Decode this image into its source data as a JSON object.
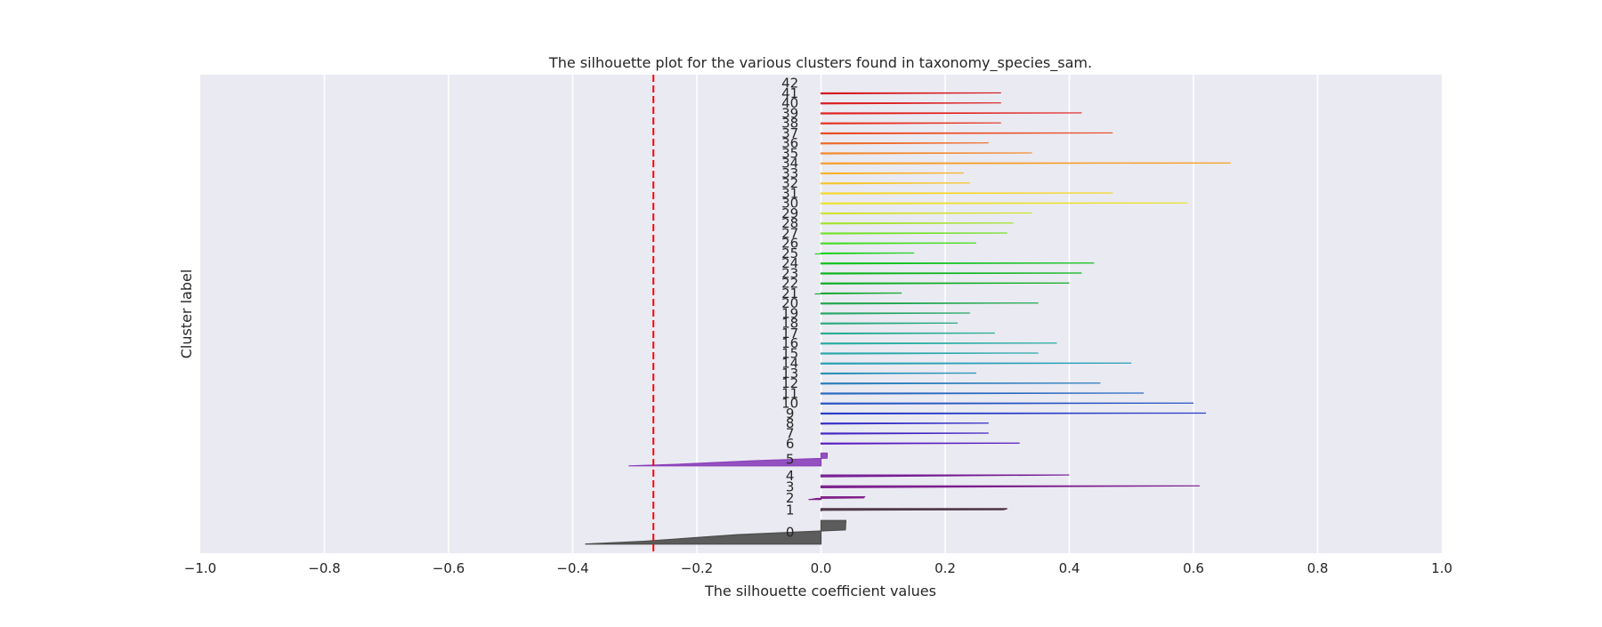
{
  "chart_data": {
    "type": "silhouette",
    "title": "The silhouette plot for the various clusters found in taxonomy_species_sam.",
    "xlabel": "The silhouette coefficient values",
    "ylabel": "Cluster label",
    "xlim": [
      -1.0,
      1.0
    ],
    "x_ticks": [
      -1.0,
      -0.8,
      -0.6,
      -0.4,
      -0.2,
      0.0,
      0.2,
      0.4,
      0.6,
      0.8,
      1.0
    ],
    "x_tick_labels": [
      "−1.0",
      "−0.8",
      "−0.6",
      "−0.4",
      "−0.2",
      "0.0",
      "0.2",
      "0.4",
      "0.6",
      "0.8",
      "1.0"
    ],
    "average_silhouette_score": -0.27,
    "average_line_color": "#ff0000",
    "background_color": "#eaeaf2",
    "grid": "vertical",
    "y_ticks_shown": false,
    "clusters": [
      {
        "label": "0",
        "color": "#4d4d4d",
        "max": 0.04,
        "min": -0.38,
        "size": 26
      },
      {
        "label": "1",
        "color": "#4d3545",
        "max": 0.3,
        "min": 0.0,
        "size": 3
      },
      {
        "label": "2",
        "color": "#7f1e86",
        "max": 0.07,
        "min": -0.02,
        "size": 3
      },
      {
        "label": "3",
        "color": "#7a1d8c",
        "max": 0.61,
        "min": 0.0,
        "size": 2
      },
      {
        "label": "4",
        "color": "#751b93",
        "max": 0.4,
        "min": 0.0,
        "size": 2
      },
      {
        "label": "5",
        "color": "#8a3fba",
        "max": 0.01,
        "min": -0.31,
        "size": 14
      },
      {
        "label": "6",
        "color": "#5a1fc0",
        "max": 0.32,
        "min": 0.0,
        "size": 1
      },
      {
        "label": "7",
        "color": "#4526c4",
        "max": 0.27,
        "min": 0.0,
        "size": 1
      },
      {
        "label": "8",
        "color": "#3630c7",
        "max": 0.27,
        "min": 0.0,
        "size": 1
      },
      {
        "label": "9",
        "color": "#2a3ec8",
        "max": 0.62,
        "min": 0.0,
        "size": 1
      },
      {
        "label": "10",
        "color": "#2a55c4",
        "max": 0.6,
        "min": 0.0,
        "size": 1
      },
      {
        "label": "11",
        "color": "#2a6ac0",
        "max": 0.52,
        "min": 0.0,
        "size": 1
      },
      {
        "label": "12",
        "color": "#2a7ebc",
        "max": 0.45,
        "min": 0.0,
        "size": 1
      },
      {
        "label": "13",
        "color": "#2a91b8",
        "max": 0.25,
        "min": 0.0,
        "size": 1
      },
      {
        "label": "14",
        "color": "#28a0b5",
        "max": 0.5,
        "min": 0.0,
        "size": 1
      },
      {
        "label": "15",
        "color": "#28a9ad",
        "max": 0.35,
        "min": 0.0,
        "size": 1
      },
      {
        "label": "16",
        "color": "#28ada2",
        "max": 0.38,
        "min": 0.0,
        "size": 1
      },
      {
        "label": "17",
        "color": "#28ad93",
        "max": 0.28,
        "min": 0.0,
        "size": 1
      },
      {
        "label": "18",
        "color": "#28aa7d",
        "max": 0.22,
        "min": 0.0,
        "size": 1
      },
      {
        "label": "19",
        "color": "#25a866",
        "max": 0.24,
        "min": 0.0,
        "size": 1
      },
      {
        "label": "20",
        "color": "#1fa84e",
        "max": 0.35,
        "min": 0.0,
        "size": 1
      },
      {
        "label": "21",
        "color": "#18a937",
        "max": 0.13,
        "min": -0.01,
        "size": 1
      },
      {
        "label": "22",
        "color": "#10ad25",
        "max": 0.4,
        "min": 0.0,
        "size": 1
      },
      {
        "label": "23",
        "color": "#0cb51b",
        "max": 0.42,
        "min": 0.0,
        "size": 1
      },
      {
        "label": "24",
        "color": "#10c21c",
        "max": 0.44,
        "min": 0.0,
        "size": 1
      },
      {
        "label": "25",
        "color": "#22d320",
        "max": 0.15,
        "min": -0.01,
        "size": 1
      },
      {
        "label": "26",
        "color": "#45dd24",
        "max": 0.25,
        "min": 0.0,
        "size": 1
      },
      {
        "label": "27",
        "color": "#76e22a",
        "max": 0.3,
        "min": 0.0,
        "size": 1
      },
      {
        "label": "28",
        "color": "#a6e32e",
        "max": 0.31,
        "min": 0.0,
        "size": 1
      },
      {
        "label": "29",
        "color": "#d2e32f",
        "max": 0.34,
        "min": 0.0,
        "size": 1
      },
      {
        "label": "30",
        "color": "#ece22d",
        "max": 0.59,
        "min": 0.0,
        "size": 1
      },
      {
        "label": "31",
        "color": "#f5d72b",
        "max": 0.47,
        "min": 0.0,
        "size": 1
      },
      {
        "label": "32",
        "color": "#f7c52b",
        "max": 0.24,
        "min": 0.0,
        "size": 1
      },
      {
        "label": "33",
        "color": "#f7b22a",
        "max": 0.23,
        "min": 0.0,
        "size": 1
      },
      {
        "label": "34",
        "color": "#f69e2a",
        "max": 0.66,
        "min": 0.0,
        "size": 1
      },
      {
        "label": "35",
        "color": "#f38828",
        "max": 0.34,
        "min": 0.0,
        "size": 1
      },
      {
        "label": "36",
        "color": "#ef6a25",
        "max": 0.27,
        "min": 0.0,
        "size": 1
      },
      {
        "label": "37",
        "color": "#ea4c22",
        "max": 0.47,
        "min": 0.0,
        "size": 1
      },
      {
        "label": "38",
        "color": "#e53320",
        "max": 0.29,
        "min": 0.0,
        "size": 1
      },
      {
        "label": "39",
        "color": "#e0221f",
        "max": 0.42,
        "min": 0.0,
        "size": 1
      },
      {
        "label": "40",
        "color": "#da1c1e",
        "max": 0.29,
        "min": 0.0,
        "size": 1
      },
      {
        "label": "41",
        "color": "#d41a1e",
        "max": 0.29,
        "min": 0.0,
        "size": 1
      },
      {
        "label": "42",
        "color": "#ce181e",
        "max": 0.0,
        "min": 0.0,
        "size": 0
      }
    ]
  }
}
